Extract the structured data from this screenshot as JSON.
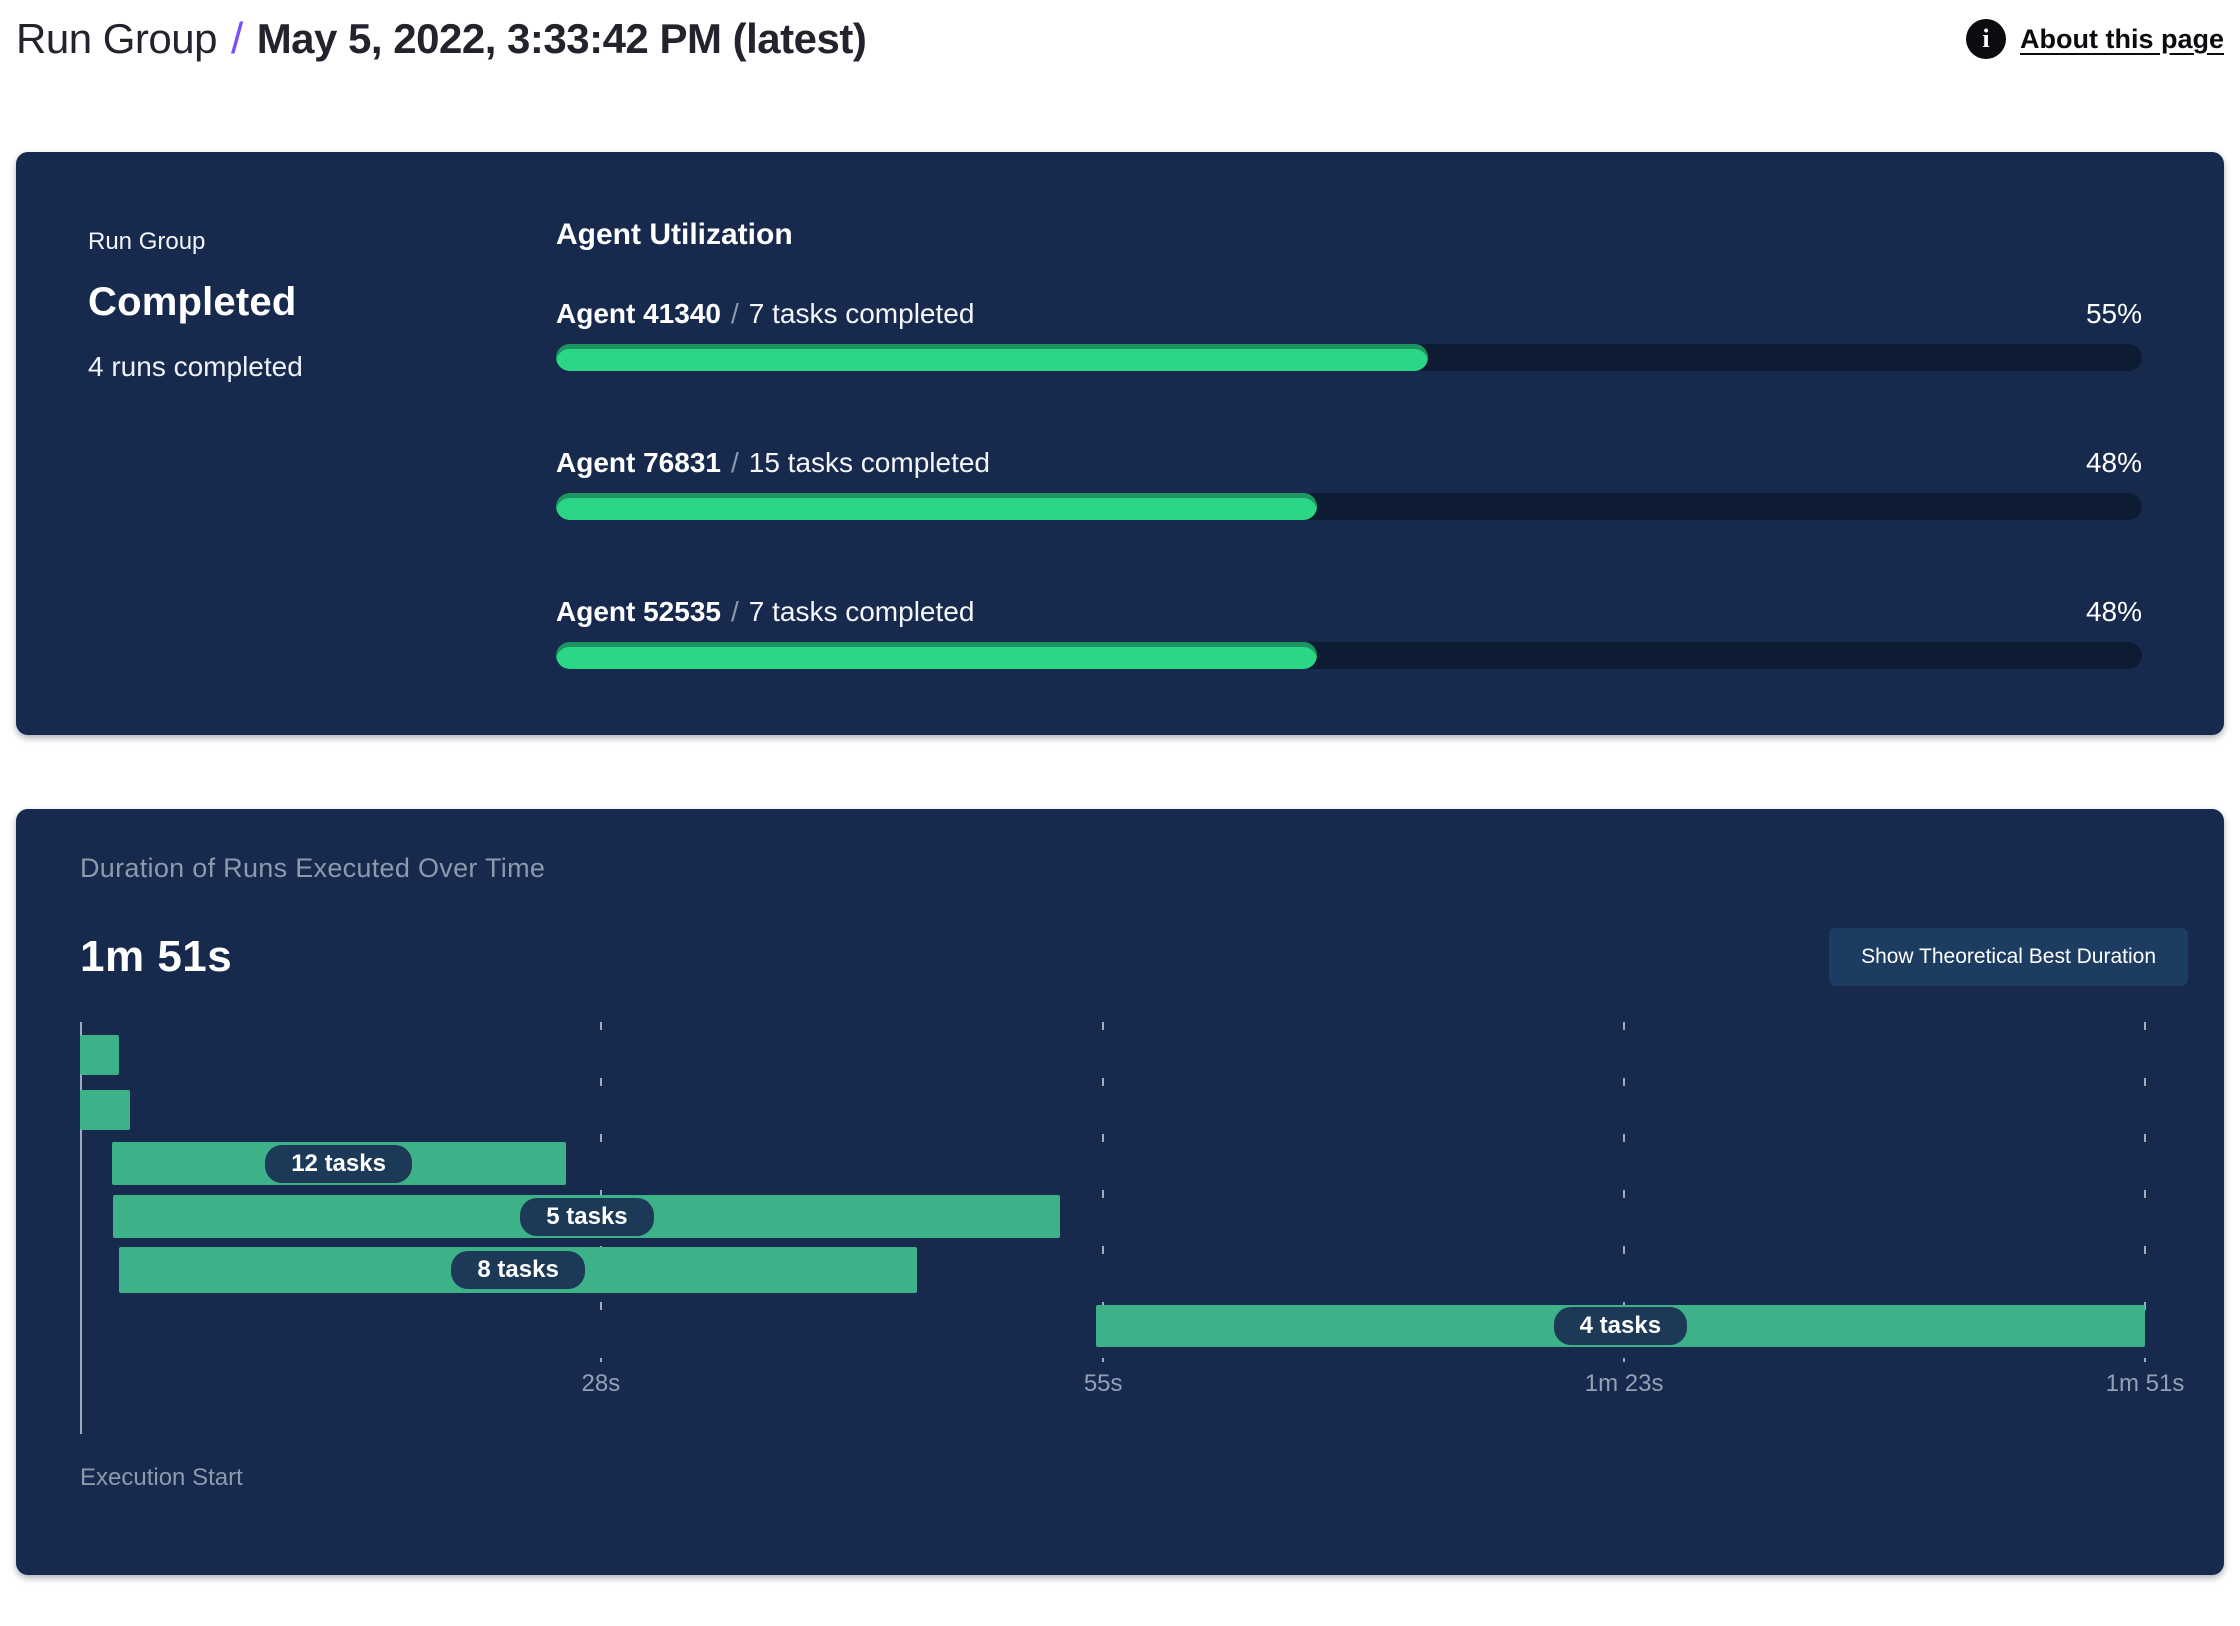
{
  "header": {
    "breadcrumb_root": "Run Group",
    "separator": "/",
    "title": "May 5, 2022, 3:33:42 PM (latest)",
    "about_link": "About this page",
    "info_icon_glyph": "i"
  },
  "summary": {
    "label": "Run Group",
    "status": "Completed",
    "runs_completed": "4 runs completed"
  },
  "agent_utilization": {
    "title": "Agent Utilization",
    "separator": "/",
    "agents": [
      {
        "name": "Agent 41340",
        "tasks": "7 tasks completed",
        "percent_label": "55%",
        "percent_value": 55
      },
      {
        "name": "Agent 76831",
        "tasks": "15 tasks completed",
        "percent_label": "48%",
        "percent_value": 48
      },
      {
        "name": "Agent 52535",
        "tasks": "7 tasks completed",
        "percent_label": "48%",
        "percent_value": 48
      }
    ]
  },
  "duration_panel": {
    "title": "Duration of Runs Executed Over Time",
    "total_duration": "1m 51s",
    "button_label": "Show Theoretical Best Duration",
    "execution_start_label": "Execution Start"
  },
  "chart_data": {
    "type": "gantt",
    "title": "Duration of Runs Executed Over Time",
    "total_duration_label": "1m 51s",
    "x_axis_seconds": [
      0,
      111
    ],
    "x_ticks": [
      {
        "label": "28s",
        "seconds": 28
      },
      {
        "label": "55s",
        "seconds": 55
      },
      {
        "label": "1m 23s",
        "seconds": 83
      },
      {
        "label": "1m 51s",
        "seconds": 111
      }
    ],
    "grid": "dashed-vertical",
    "bars": [
      {
        "label": "",
        "start_s": 0,
        "end_s": 2.1
      },
      {
        "label": "",
        "start_s": 0,
        "end_s": 2.7
      },
      {
        "label": "12 tasks",
        "start_s": 1.7,
        "end_s": 26.1
      },
      {
        "label": "5 tasks",
        "start_s": 1.8,
        "end_s": 52.7
      },
      {
        "label": "8 tasks",
        "start_s": 2.1,
        "end_s": 45.0
      },
      {
        "label": "4 tasks",
        "start_s": 54.6,
        "end_s": 111
      }
    ],
    "colors": {
      "bar": "#3db289",
      "bar_label_pill": "#1c3a57",
      "utilization_fill": "#2cd687",
      "utilization_track": "#0d1b33",
      "panel_bg": "#172a4d",
      "accent_purple": "#7c4dff"
    }
  }
}
